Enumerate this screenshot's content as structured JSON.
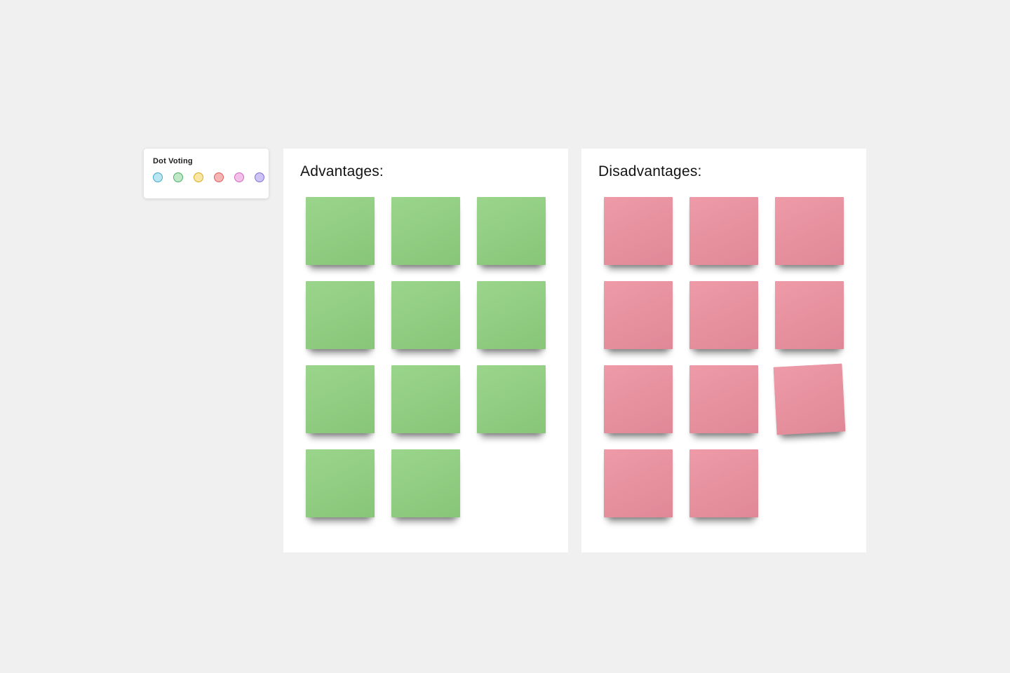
{
  "dot_voting": {
    "title": "Dot Voting",
    "dots": [
      {
        "name": "cyan",
        "fill": "#b9e6f0",
        "border": "#43a8c6"
      },
      {
        "name": "green",
        "fill": "#bfe8c8",
        "border": "#4aaf68"
      },
      {
        "name": "yellow",
        "fill": "#f8e6a2",
        "border": "#d8ab27"
      },
      {
        "name": "red",
        "fill": "#f6b5b5",
        "border": "#e05c5c"
      },
      {
        "name": "pink",
        "fill": "#f3c0e9",
        "border": "#cf6cc3"
      },
      {
        "name": "purple",
        "fill": "#cdc3f4",
        "border": "#8370d6"
      }
    ]
  },
  "panels": [
    {
      "id": "advantages",
      "title": "Advantages:",
      "note_color": "#8fd07f",
      "notes": [
        {
          "row": 0,
          "col": 0
        },
        {
          "row": 0,
          "col": 1
        },
        {
          "row": 0,
          "col": 2
        },
        {
          "row": 1,
          "col": 0
        },
        {
          "row": 1,
          "col": 1
        },
        {
          "row": 1,
          "col": 2
        },
        {
          "row": 2,
          "col": 0
        },
        {
          "row": 2,
          "col": 1
        },
        {
          "row": 2,
          "col": 2
        },
        {
          "row": 3,
          "col": 0
        },
        {
          "row": 3,
          "col": 1
        }
      ]
    },
    {
      "id": "disadvantages",
      "title": "Disadvantages:",
      "note_color": "#ec8f9e",
      "notes": [
        {
          "row": 0,
          "col": 0
        },
        {
          "row": 0,
          "col": 1
        },
        {
          "row": 0,
          "col": 2
        },
        {
          "row": 1,
          "col": 0
        },
        {
          "row": 1,
          "col": 1
        },
        {
          "row": 1,
          "col": 2
        },
        {
          "row": 2,
          "col": 0
        },
        {
          "row": 2,
          "col": 1
        },
        {
          "row": 2,
          "col": 2,
          "tilt": -3
        },
        {
          "row": 3,
          "col": 0
        },
        {
          "row": 3,
          "col": 1
        }
      ]
    }
  ]
}
